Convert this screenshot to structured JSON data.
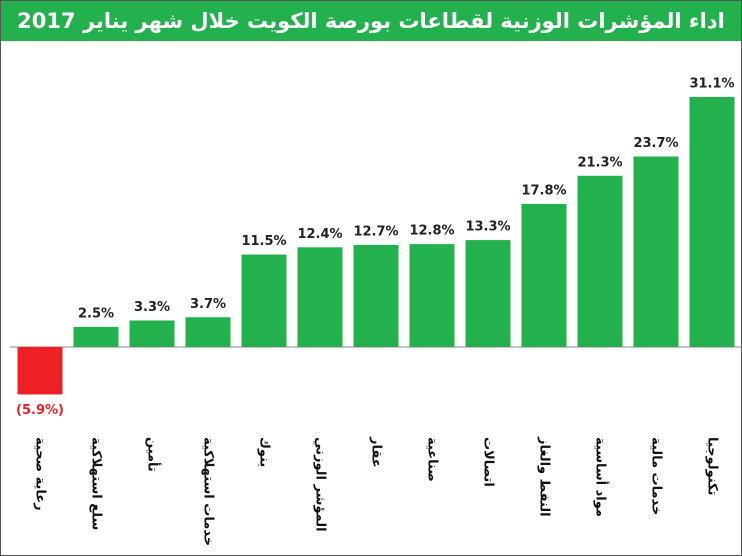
{
  "chart_data": {
    "type": "bar",
    "title": "اداء المؤشرات الوزنية لقطاعات بورصة الكويت خلال شهر يناير 2017",
    "categories": [
      "رعاية صحية",
      "سلع استهلاكية",
      "تأمين",
      "خدمات استهلاكية",
      "بنوك",
      "المؤشر الوزني",
      "عقار",
      "صناعية",
      "اتصالات",
      "النفط والغاز",
      "مواد أساسية",
      "خدمات مالية",
      "تكنولوجيا"
    ],
    "values": [
      -5.9,
      2.5,
      3.3,
      3.7,
      11.5,
      12.4,
      12.7,
      12.8,
      13.3,
      17.8,
      21.3,
      23.7,
      31.1
    ],
    "value_labels": [
      "(5.9%)",
      "2.5%",
      "3.3%",
      "3.7%",
      "11.5%",
      "12.4%",
      "12.7%",
      "12.8%",
      "13.3%",
      "17.8%",
      "21.3%",
      "23.7%",
      "31.1%"
    ],
    "colors": [
      "#ed2024",
      "#22b14c",
      "#22b14c",
      "#22b14c",
      "#22b14c",
      "#22b14c",
      "#22b14c",
      "#22b14c",
      "#22b14c",
      "#22b14c",
      "#22b14c",
      "#22b14c",
      "#22b14c"
    ]
  }
}
